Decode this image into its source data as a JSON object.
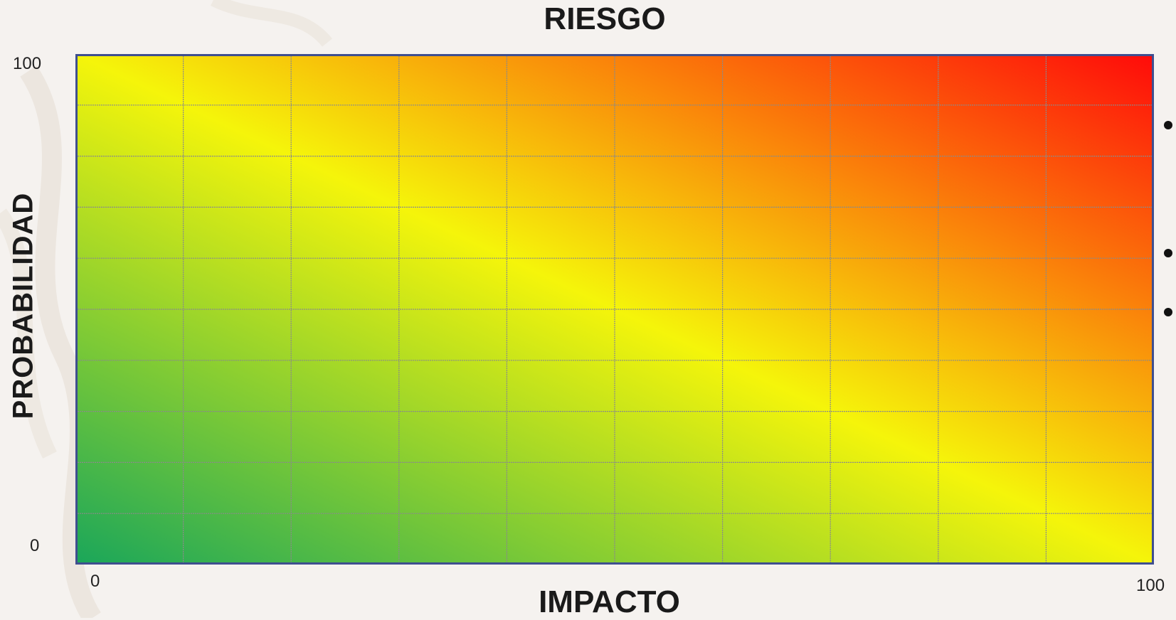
{
  "chart_data": {
    "type": "heatmap",
    "title": "RIESGO",
    "xlabel": "IMPACTO",
    "ylabel": "PROBABILIDAD",
    "xlim": [
      0,
      100
    ],
    "ylim": [
      0,
      100
    ],
    "x_ticks": [
      "0",
      "100"
    ],
    "y_ticks": [
      "100",
      "0"
    ],
    "grid": true,
    "grid_divisions": {
      "columns": 10,
      "rows": 10
    },
    "color_gradient": {
      "low_low": "#1aa65a",
      "mid": "#f5f50a",
      "high_high": "#ff0a0a"
    },
    "colors": {
      "grid_line": "#8a8a8a",
      "border": "#3f4f8f"
    }
  }
}
